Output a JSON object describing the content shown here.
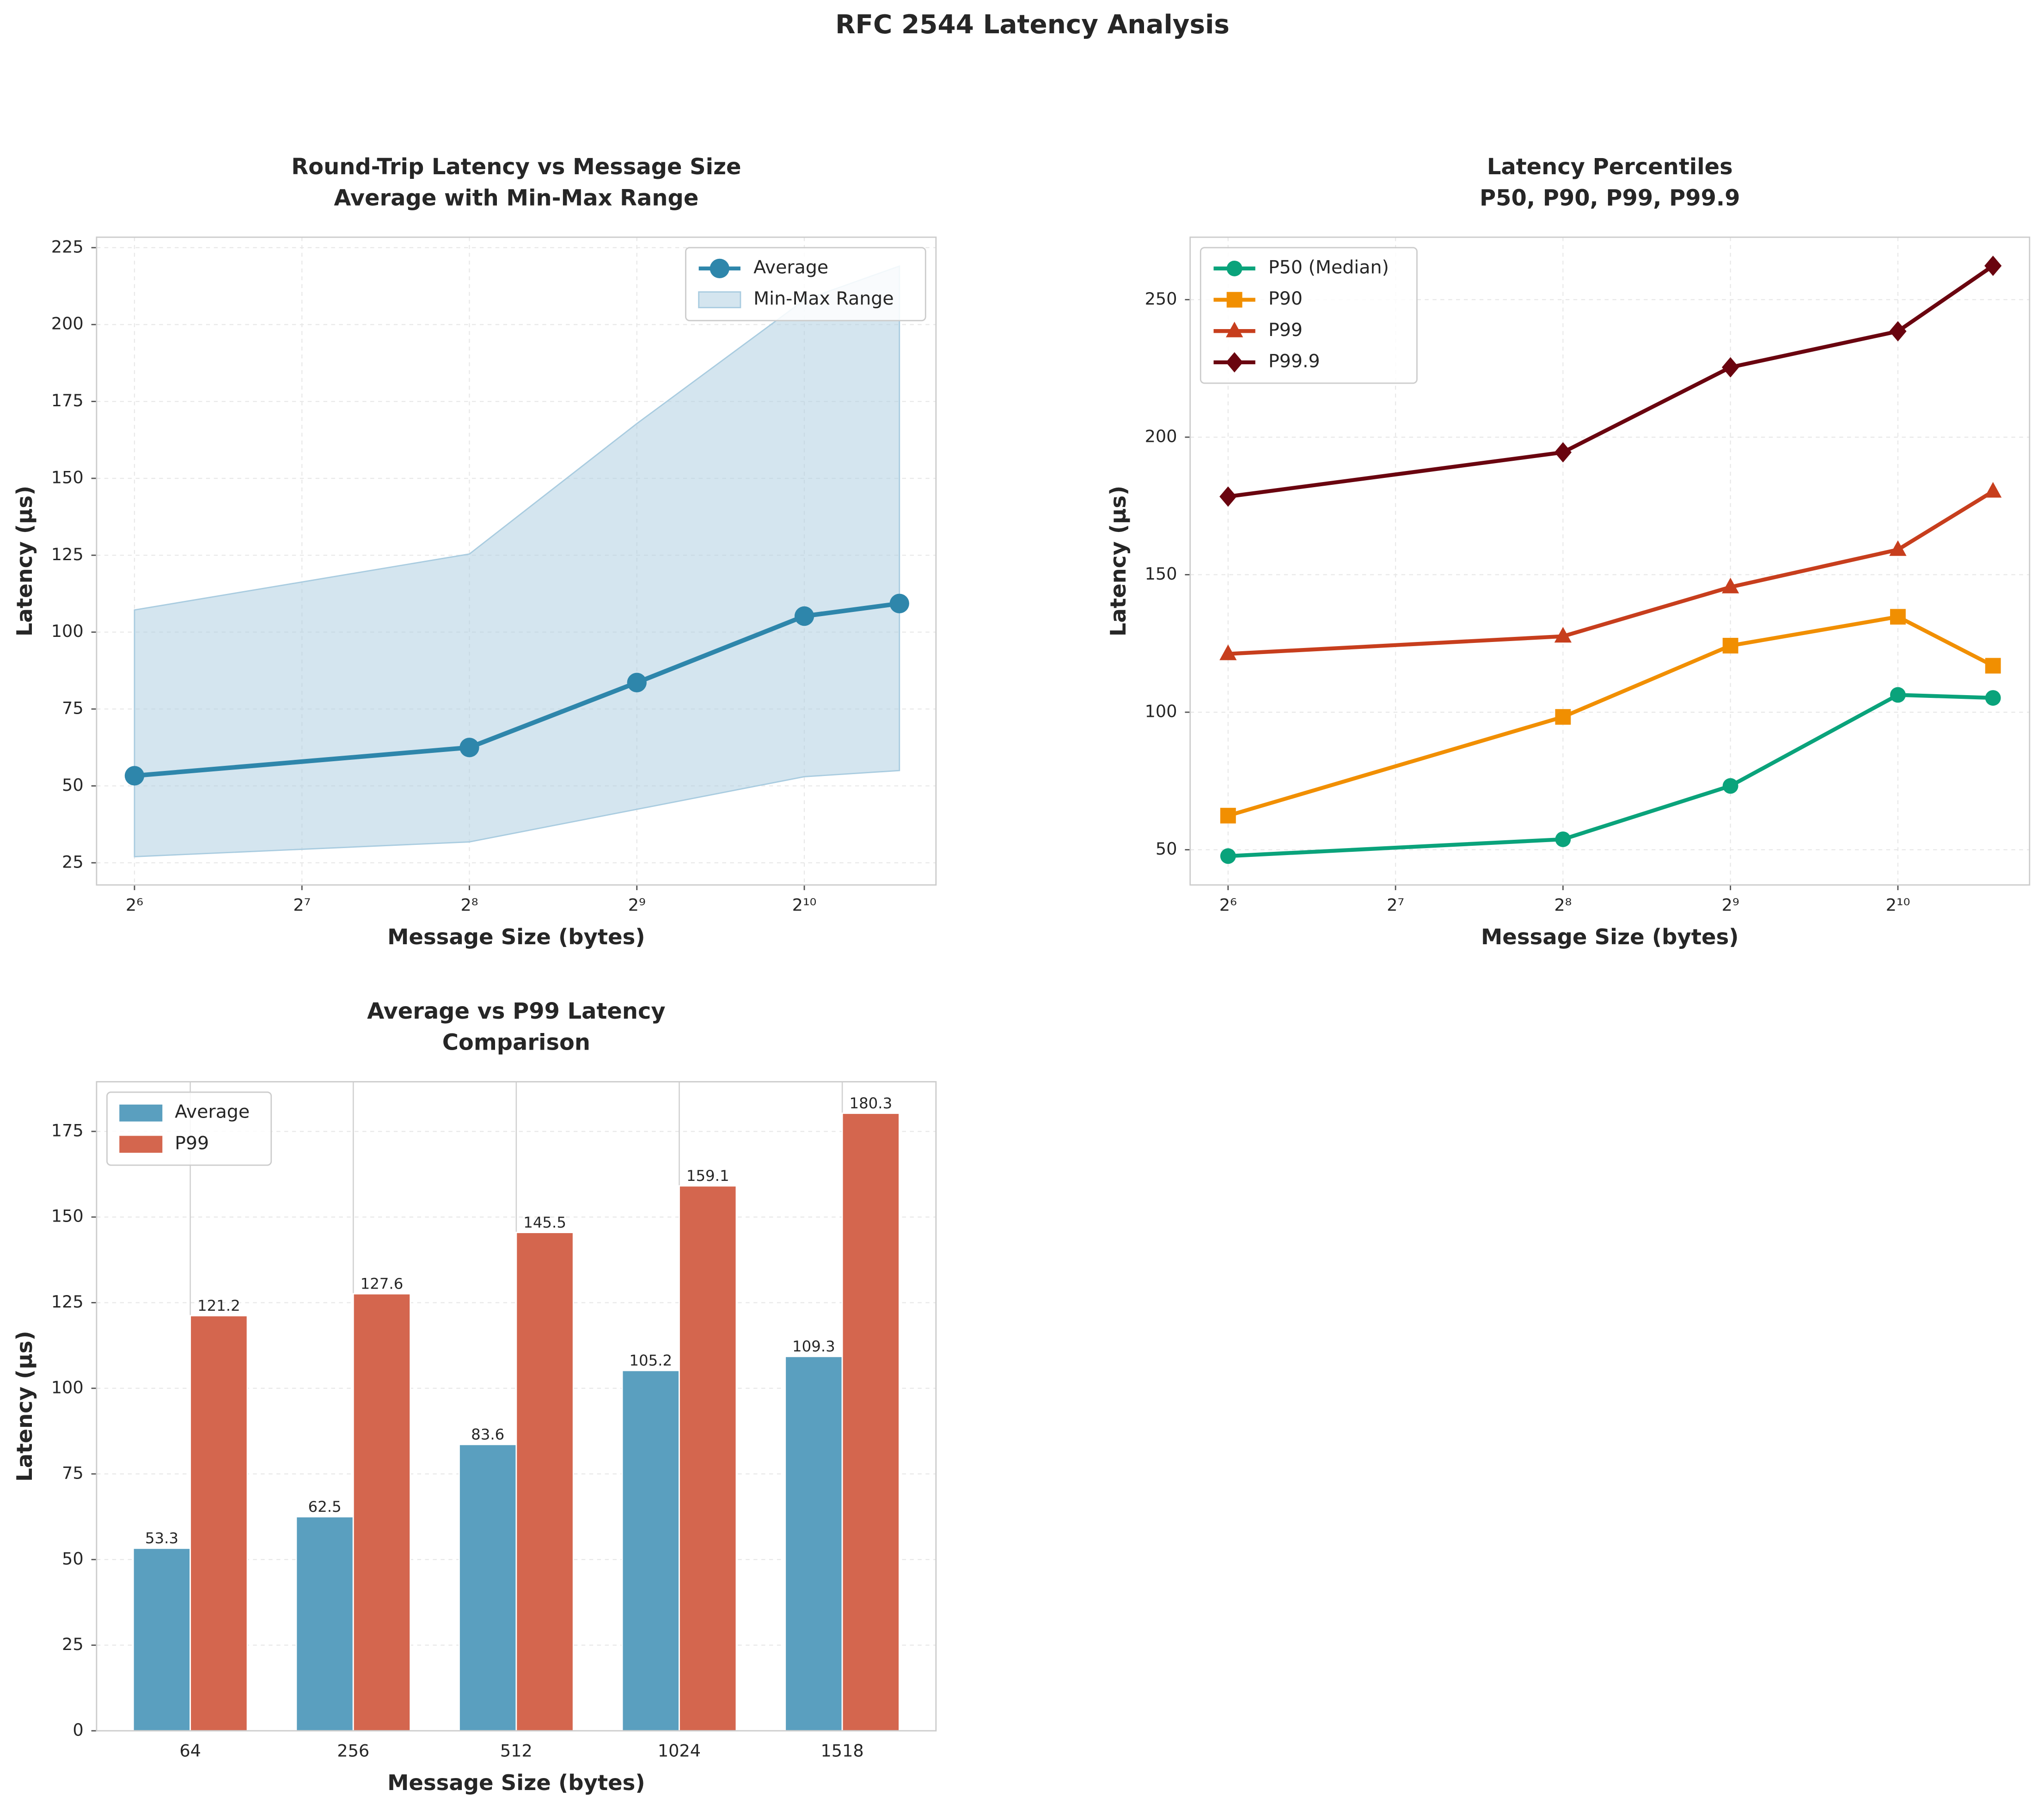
{
  "title": "RFC 2544 Latency Analysis",
  "chart_data": [
    {
      "type": "line",
      "title": [
        "Round-Trip Latency vs Message Size",
        "Average with Min-Max Range"
      ],
      "xlabel": "Message Size (bytes)",
      "ylabel": "Latency (µs)",
      "x": [
        64,
        256,
        512,
        1024,
        1518
      ],
      "xscale": "log2",
      "xlim": [
        54.7,
        1766
      ],
      "xticks": [
        {
          "value": 64,
          "label": "2⁶"
        },
        {
          "value": 128,
          "label": "2⁷"
        },
        {
          "value": 256,
          "label": "2⁸"
        },
        {
          "value": 512,
          "label": "2⁹"
        },
        {
          "value": 1024,
          "label": "2¹⁰"
        }
      ],
      "ylim": [
        17.8,
        228.4
      ],
      "yticks": [
        25,
        50,
        75,
        100,
        125,
        150,
        175,
        200,
        225
      ],
      "grid": true,
      "legend": "upper right",
      "series": [
        {
          "name": "Average",
          "color": "#2e86ab",
          "marker": "circle",
          "values": [
            53.3,
            62.5,
            83.6,
            105.2,
            109.3
          ]
        }
      ],
      "band": {
        "name": "Min-Max Range",
        "color": "#a9cce0",
        "lower": [
          27,
          31.8,
          42.4,
          53,
          55
        ],
        "upper": [
          107.2,
          125.4,
          167.8,
          208,
          219
        ]
      }
    },
    {
      "type": "line",
      "title": [
        "Latency Percentiles",
        "P50, P90, P99, P99.9"
      ],
      "xlabel": "Message Size (bytes)",
      "ylabel": "Latency (µs)",
      "x": [
        64,
        256,
        512,
        1024,
        1518
      ],
      "xscale": "log2",
      "xlim": [
        54.7,
        1766
      ],
      "xticks": [
        {
          "value": 64,
          "label": "2⁶"
        },
        {
          "value": 128,
          "label": "2⁷"
        },
        {
          "value": 256,
          "label": "2⁸"
        },
        {
          "value": 512,
          "label": "2⁹"
        },
        {
          "value": 1024,
          "label": "2¹⁰"
        }
      ],
      "ylim": [
        37.2,
        272.7
      ],
      "yticks": [
        50,
        100,
        150,
        200,
        250
      ],
      "grid": true,
      "legend": "upper left",
      "series": [
        {
          "name": "P50 (Median)",
          "color": "#0aa37b",
          "marker": "circle",
          "values": [
            47.7,
            53.8,
            73.2,
            106.3,
            105.2
          ]
        },
        {
          "name": "P90",
          "color": "#f18f01",
          "marker": "square",
          "values": [
            62.4,
            98.3,
            124.2,
            134.7,
            116.9
          ]
        },
        {
          "name": "P99",
          "color": "#c73e1d",
          "marker": "triangle",
          "values": [
            121.2,
            127.6,
            145.5,
            159.1,
            180.3
          ]
        },
        {
          "name": "P99.9",
          "color": "#6a040f",
          "marker": "diamond",
          "values": [
            178.4,
            194.5,
            225.4,
            238.5,
            262.3
          ]
        }
      ]
    },
    {
      "type": "bar",
      "title": [
        "Average vs P99 Latency",
        "Comparison"
      ],
      "xlabel": "Message Size (bytes)",
      "ylabel": "Latency (µs)",
      "categories": [
        "64",
        "256",
        "512",
        "1024",
        "1518"
      ],
      "ylim": [
        0,
        189.5
      ],
      "yticks": [
        0,
        25,
        50,
        75,
        100,
        125,
        150,
        175
      ],
      "grid": true,
      "legend": "upper left",
      "series": [
        {
          "name": "Average",
          "color": "#5a9fbf",
          "values": [
            53.3,
            62.5,
            83.6,
            105.2,
            109.3
          ]
        },
        {
          "name": "P99",
          "color": "#d4664e",
          "values": [
            121.2,
            127.6,
            145.5,
            159.1,
            180.3
          ]
        }
      ]
    }
  ]
}
